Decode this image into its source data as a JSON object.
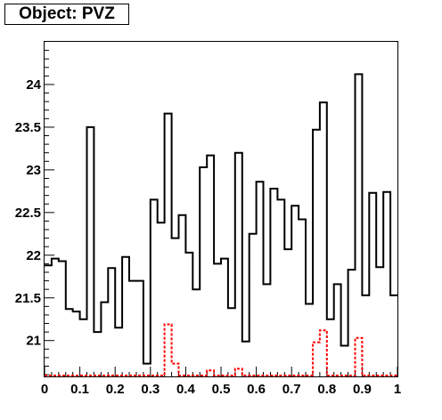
{
  "chart_data": {
    "type": "histogram",
    "title": "Object: PVZ",
    "xlabel": "",
    "ylabel": "",
    "xlim": [
      0,
      1
    ],
    "ylim": [
      20.58,
      24.5
    ],
    "grid": false,
    "x_ticks": [
      "0",
      "0.1",
      "0.2",
      "0.3",
      "0.4",
      "0.5",
      "0.6",
      "0.7",
      "0.8",
      "0.9",
      "1"
    ],
    "y_ticks": [
      "21",
      "21.5",
      "22",
      "22.5",
      "23",
      "23.5",
      "24"
    ],
    "bin_width": 0.02,
    "series": [
      {
        "style": "solid",
        "color": "#000000",
        "values": [
          21.88,
          21.96,
          21.93,
          21.37,
          21.34,
          21.25,
          23.5,
          21.1,
          21.45,
          21.85,
          21.15,
          21.98,
          21.7,
          21.7,
          20.73,
          22.65,
          22.38,
          23.66,
          22.2,
          22.47,
          22.03,
          21.6,
          23.03,
          23.17,
          21.9,
          21.96,
          21.38,
          23.2,
          20.99,
          22.25,
          22.86,
          21.66,
          22.78,
          22.65,
          22.07,
          22.58,
          22.42,
          21.43,
          23.47,
          23.79,
          21.25,
          21.66,
          20.94,
          21.83,
          24.12,
          21.53,
          22.73,
          21.86,
          22.74,
          21.53
        ]
      },
      {
        "style": "dashed",
        "color": "#ff0000",
        "values": [
          20.59,
          20.59,
          20.59,
          20.59,
          20.59,
          20.59,
          20.59,
          20.59,
          20.59,
          20.59,
          20.59,
          20.59,
          20.59,
          20.59,
          20.59,
          20.59,
          20.59,
          21.19,
          20.73,
          20.59,
          20.59,
          20.59,
          20.59,
          20.65,
          20.59,
          20.59,
          20.59,
          20.67,
          20.59,
          20.59,
          20.59,
          20.59,
          20.59,
          20.59,
          20.59,
          20.59,
          20.59,
          20.59,
          20.98,
          21.12,
          20.59,
          20.59,
          20.59,
          20.59,
          21.03,
          20.59,
          20.59,
          20.59,
          20.59,
          20.59
        ]
      }
    ]
  }
}
